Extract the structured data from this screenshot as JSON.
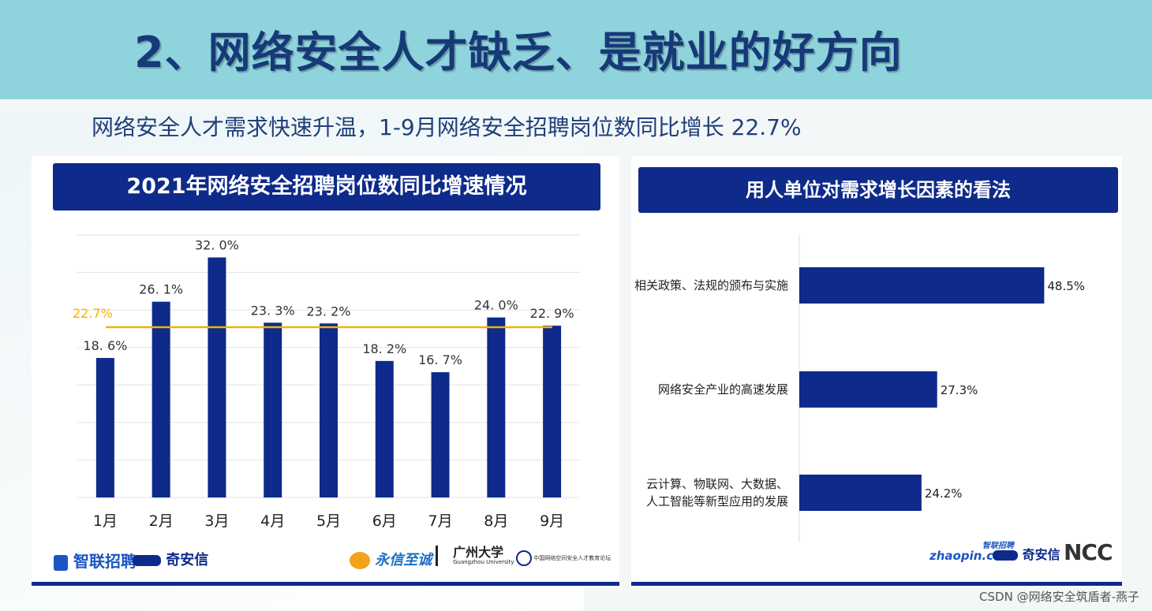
{
  "header": {
    "title": "2、网络安全人才缺乏、是就业的好方向"
  },
  "subtitle": "网络安全人才需求快速升温，1-9月网络安全招聘岗位数同比增长 22.7%",
  "chart_data": [
    {
      "type": "bar",
      "title": "2021年网络安全招聘岗位数同比增速情况",
      "categories": [
        "1月",
        "2月",
        "3月",
        "4月",
        "5月",
        "6月",
        "7月",
        "8月",
        "9月"
      ],
      "values": [
        18.6,
        26.1,
        32.0,
        23.3,
        23.2,
        18.2,
        16.7,
        24.0,
        22.9
      ],
      "data_labels": [
        "18. 6%",
        "26. 1%",
        "32. 0%",
        "23. 3%",
        "23. 2%",
        "18. 2%",
        "16. 7%",
        "24. 0%",
        "22. 9%"
      ],
      "reference_line": {
        "value": 22.7,
        "label": "22.7%",
        "color": "#f0b400"
      },
      "ylim": [
        0,
        35
      ],
      "grid": true,
      "bar_color": "#0e2a8a"
    },
    {
      "type": "bar",
      "orientation": "horizontal",
      "title": "用人单位对需求增长因素的看法",
      "categories": [
        [
          "相关政策、法规的颁布与实施"
        ],
        [
          "网络安全产业的高速发展"
        ],
        [
          "云计算、物联网、大数据、",
          "人工智能等新型应用的发展"
        ]
      ],
      "values": [
        48.5,
        27.3,
        24.2
      ],
      "data_labels": [
        "48.5%",
        "27.3%",
        "24.2%"
      ],
      "xlim": [
        0,
        50
      ],
      "bar_color": "#0e2a8a"
    }
  ],
  "logos_left": {
    "zhilian": "智联招聘",
    "qianxin": "奇安信",
    "yongxin": "永信至诚",
    "gzu": "广州大学",
    "gzu_en": "Guangzhou University",
    "alliance": "中国网络空间安全人才教育论坛"
  },
  "logos_right": {
    "zhaopin": "zhaopin.com",
    "zhaopin_cn": "智联招聘",
    "qianxin": "奇安信",
    "ncc": "NCC"
  },
  "watermark": "CSDN @网络安全筑盾者-燕子",
  "colors": {
    "bar": "#0e2a8a",
    "accent_line": "#f0b400",
    "banner": "#8fd3dd",
    "title": "#163a78"
  }
}
